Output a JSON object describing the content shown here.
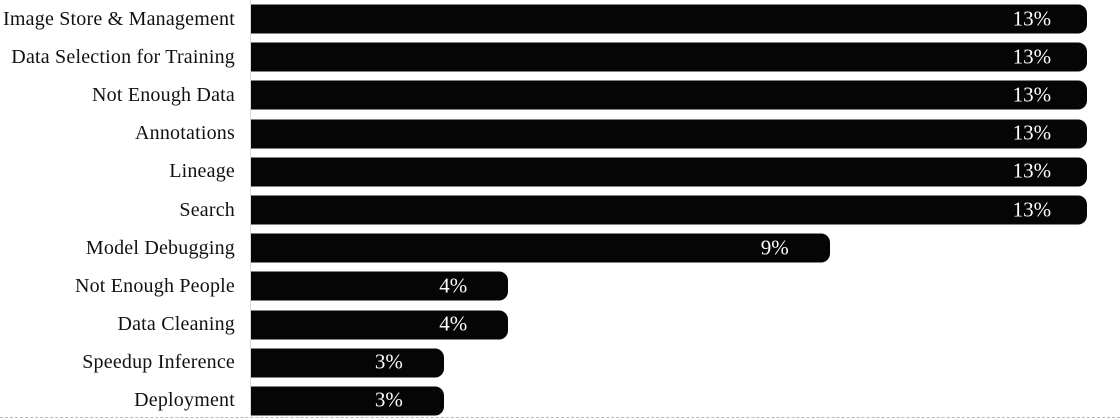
{
  "chart_data": {
    "type": "bar",
    "orientation": "horizontal",
    "title": "",
    "xlabel": "",
    "ylabel": "",
    "unit": "%",
    "xlim": [
      0,
      13.5
    ],
    "grid": false,
    "legend": false,
    "bar_color": "#050505",
    "value_label_color": "#ffffff",
    "categories": [
      "Image Store & Management",
      "Data Selection for Training",
      "Not Enough Data",
      "Annotations",
      "Lineage",
      "Search",
      "Model Debugging",
      "Not Enough People",
      "Data Cleaning",
      "Speedup Inference",
      "Deployment"
    ],
    "values": [
      13,
      13,
      13,
      13,
      13,
      13,
      9,
      4,
      4,
      3,
      3
    ],
    "value_labels": [
      "13%",
      "13%",
      "13%",
      "13%",
      "13%",
      "13%",
      "9%",
      "4%",
      "4%",
      "3%",
      "3%"
    ]
  }
}
